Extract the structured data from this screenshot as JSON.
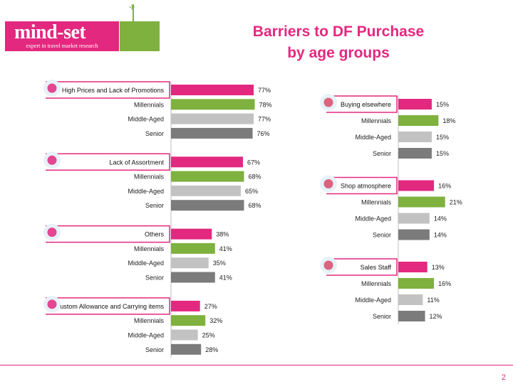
{
  "logo": {
    "name": "mind-set",
    "tagline": "expert in travel market research"
  },
  "title": {
    "line1": "Barriers to DF Purchase",
    "line2": "by age groups"
  },
  "page_number": "2",
  "colors": {
    "overall": "#e3287f",
    "millennials": "#7fb13e",
    "middle_aged": "#c2c2c2",
    "senior": "#7b7b7b"
  },
  "chart_data": [
    {
      "type": "bar",
      "orientation": "horizontal",
      "groups": [
        {
          "label": "High Prices and Lack of Promotions",
          "icon": "price-tag-icon",
          "rows": [
            {
              "label": "",
              "value": 77,
              "text": "77%"
            },
            {
              "label": "Millennials",
              "value": 78,
              "text": "78%"
            },
            {
              "label": "Middle-Aged",
              "value": 77,
              "text": "77%"
            },
            {
              "label": "Senior",
              "value": 76,
              "text": "76%"
            }
          ]
        },
        {
          "label": "Lack of Assortment",
          "icon": "assortment-icon",
          "rows": [
            {
              "label": "",
              "value": 67,
              "text": "67%"
            },
            {
              "label": "Millennials",
              "value": 68,
              "text": "68%"
            },
            {
              "label": "Middle-Aged",
              "value": 65,
              "text": "65%"
            },
            {
              "label": "Senior",
              "value": 68,
              "text": "68%"
            }
          ]
        },
        {
          "label": "Others",
          "icon": "puzzle-icon",
          "rows": [
            {
              "label": "",
              "value": 38,
              "text": "38%"
            },
            {
              "label": "Millennials",
              "value": 41,
              "text": "41%"
            },
            {
              "label": "Middle-Aged",
              "value": 35,
              "text": "35%"
            },
            {
              "label": "Senior",
              "value": 41,
              "text": "41%"
            }
          ]
        },
        {
          "label": "Custom Allowance and Carrying items",
          "icon": "suitcase-icon",
          "rows": [
            {
              "label": "",
              "value": 27,
              "text": "27%"
            },
            {
              "label": "Millennials",
              "value": 32,
              "text": "32%"
            },
            {
              "label": "Middle-Aged",
              "value": 25,
              "text": "25%"
            },
            {
              "label": "Senior",
              "value": 28,
              "text": "28%"
            }
          ]
        }
      ]
    },
    {
      "type": "bar",
      "orientation": "horizontal",
      "groups": [
        {
          "label": "Buying elsewhere",
          "icon": "shopping-cart-icon",
          "rows": [
            {
              "label": "",
              "value": 15,
              "text": "15%"
            },
            {
              "label": "Millennials",
              "value": 18,
              "text": "18%"
            },
            {
              "label": "Middle-Aged",
              "value": 15,
              "text": "15%"
            },
            {
              "label": "Senior",
              "value": 15,
              "text": "15%"
            }
          ]
        },
        {
          "label": "Shop atmosphere",
          "icon": "shop-icon",
          "rows": [
            {
              "label": "",
              "value": 16,
              "text": "16%"
            },
            {
              "label": "Millennials",
              "value": 21,
              "text": "21%"
            },
            {
              "label": "Middle-Aged",
              "value": 14,
              "text": "14%"
            },
            {
              "label": "Senior",
              "value": 14,
              "text": "14%"
            }
          ]
        },
        {
          "label": "Sales Staff",
          "icon": "sales-person-icon",
          "rows": [
            {
              "label": "",
              "value": 13,
              "text": "13%"
            },
            {
              "label": "Millennials",
              "value": 16,
              "text": "16%"
            },
            {
              "label": "Middle-Aged",
              "value": 11,
              "text": "11%"
            },
            {
              "label": "Senior",
              "value": 12,
              "text": "12%"
            }
          ]
        }
      ]
    }
  ]
}
